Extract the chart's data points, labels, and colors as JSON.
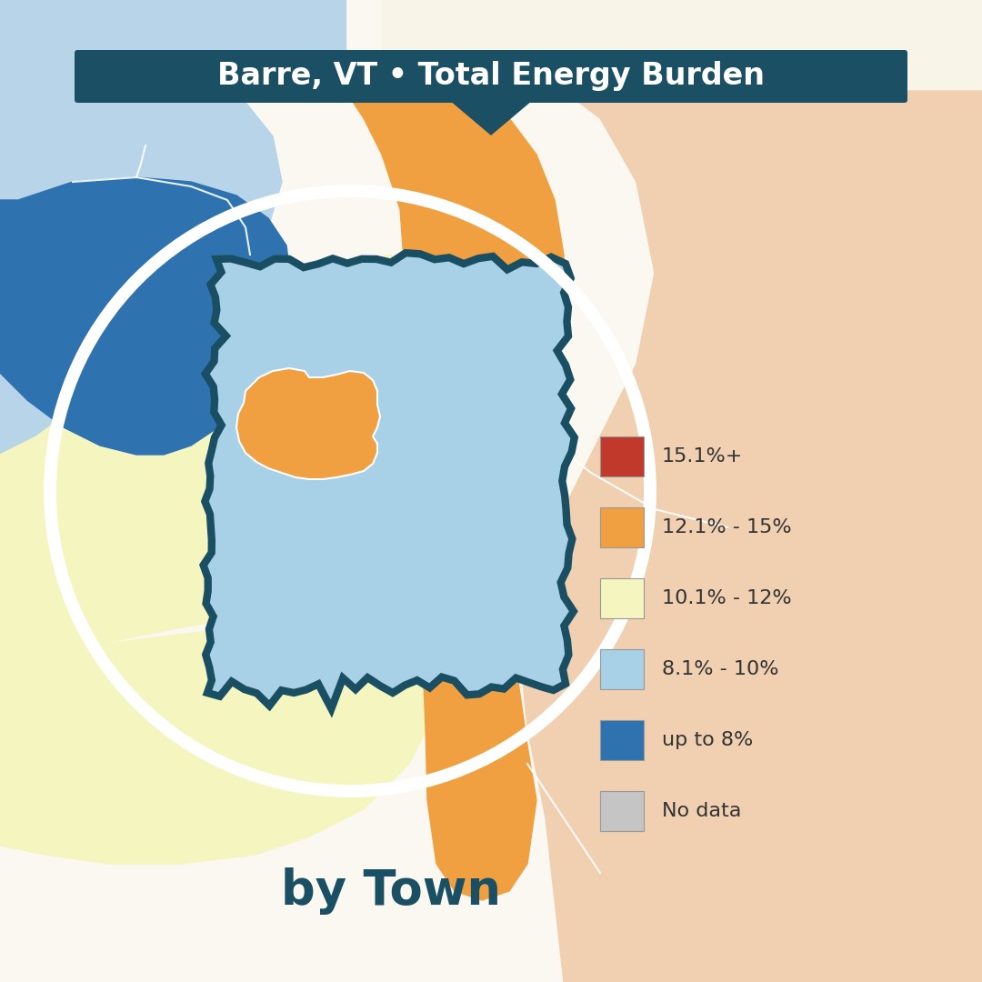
{
  "title": "Barre, VT • Total Energy Burden",
  "subtitle": "by Town",
  "title_bg_color": "#1b4f63",
  "title_text_color": "#ffffff",
  "subtitle_color": "#1b4f63",
  "bg_color": "#faf8f0",
  "colors": {
    "red": "#c0392b",
    "orange": "#f0a040",
    "yellow": "#f5f5c0",
    "light_blue": "#a8d0e6",
    "dark_blue": "#2e72b0",
    "light_blue_bg": "#b8d4e8",
    "peach": "#f0d0b0",
    "cream_white": "#f8f5e8",
    "no_data": "#c5c5c5"
  },
  "legend_items": [
    {
      "label": "15.1%+",
      "color": "#c0392b"
    },
    {
      "label": "12.1% - 15%",
      "color": "#f0a040"
    },
    {
      "label": "10.1% - 12%",
      "color": "#f5f5c0"
    },
    {
      "label": "8.1% - 10%",
      "color": "#a8d0e6"
    },
    {
      "label": "up to 8%",
      "color": "#2e72b0"
    },
    {
      "label": "No data",
      "color": "#c5c5c5"
    }
  ]
}
